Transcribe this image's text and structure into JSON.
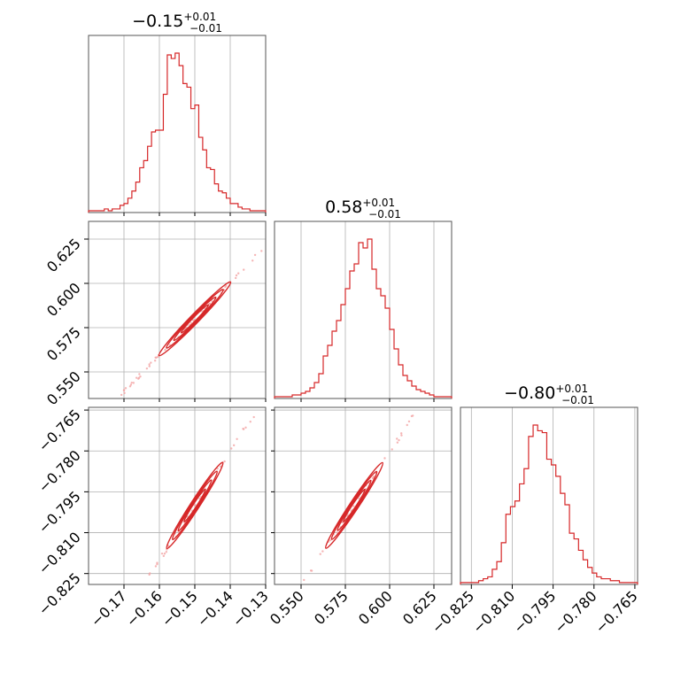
{
  "colors": {
    "main": "#d62728",
    "grid": "#b0b0b0",
    "frame": "#555555",
    "scatter": "#f2a4a4"
  },
  "chart_data": {
    "type": "corner",
    "parameters": [
      {
        "median": -0.15,
        "range": [
          -0.18,
          -0.13
        ],
        "ticks": [
          -0.17,
          -0.16,
          -0.15,
          -0.14,
          -0.13
        ],
        "tick_labels": [
          "−0.17",
          "−0.16",
          "−0.15",
          "−0.14",
          "−0.13"
        ],
        "title": "−0.15",
        "title_sup": "+0.01",
        "title_sub": "−0.01",
        "histogram": [
          0.01,
          0.01,
          0.01,
          0.01,
          0.02,
          0.01,
          0.02,
          0.02,
          0.04,
          0.05,
          0.08,
          0.12,
          0.17,
          0.25,
          0.29,
          0.37,
          0.45,
          0.46,
          0.46,
          0.66,
          0.88,
          0.86,
          0.89,
          0.82,
          0.72,
          0.7,
          0.58,
          0.6,
          0.42,
          0.35,
          0.25,
          0.24,
          0.16,
          0.12,
          0.11,
          0.08,
          0.05,
          0.05,
          0.03,
          0.02,
          0.02,
          0.01,
          0.01,
          0.01,
          0.01
        ]
      },
      {
        "median": 0.58,
        "range": [
          0.535,
          0.635
        ],
        "ticks": [
          0.55,
          0.575,
          0.6,
          0.625
        ],
        "tick_labels": [
          "0.550",
          "0.575",
          "0.600",
          "0.625"
        ],
        "title": "0.58",
        "title_sup": "+0.01",
        "title_sub": "−0.01",
        "histogram": [
          0.01,
          0.01,
          0.01,
          0.01,
          0.02,
          0.02,
          0.03,
          0.04,
          0.06,
          0.09,
          0.14,
          0.24,
          0.3,
          0.38,
          0.44,
          0.53,
          0.62,
          0.72,
          0.76,
          0.88,
          0.85,
          0.9,
          0.73,
          0.62,
          0.58,
          0.51,
          0.39,
          0.28,
          0.19,
          0.13,
          0.1,
          0.07,
          0.05,
          0.04,
          0.03,
          0.02,
          0.01,
          0.01,
          0.01,
          0.01
        ]
      },
      {
        "median": -0.8,
        "range": [
          -0.829,
          -0.764
        ],
        "ticks": [
          -0.825,
          -0.81,
          -0.795,
          -0.78,
          -0.765
        ],
        "tick_labels": [
          "−0.825",
          "−0.810",
          "−0.795",
          "−0.780",
          "−0.765"
        ],
        "title": "−0.80",
        "title_sup": "+0.01",
        "title_sub": "−0.01",
        "histogram": [
          0.01,
          0.01,
          0.01,
          0.01,
          0.02,
          0.03,
          0.04,
          0.08,
          0.12,
          0.22,
          0.37,
          0.41,
          0.44,
          0.53,
          0.61,
          0.78,
          0.84,
          0.81,
          0.8,
          0.66,
          0.63,
          0.57,
          0.48,
          0.42,
          0.27,
          0.24,
          0.18,
          0.13,
          0.09,
          0.06,
          0.04,
          0.03,
          0.03,
          0.02,
          0.02,
          0.01,
          0.01,
          0.01,
          0.01
        ]
      }
    ],
    "correlation_slopes": {
      "1_0": 2.06,
      "2_0": 2.0,
      "2_1": 0.98
    },
    "grid": true
  }
}
